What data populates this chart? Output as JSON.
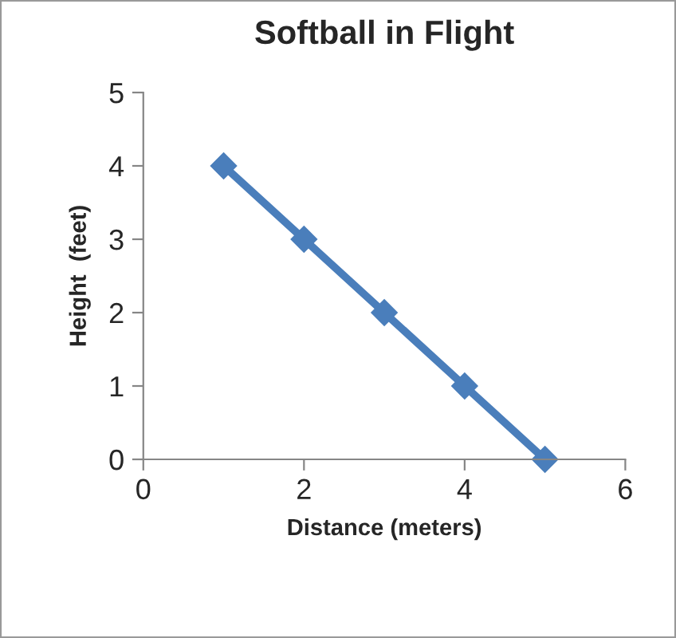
{
  "chart_data": {
    "type": "line",
    "title": "Softball in Flight",
    "xlabel": "Distance (meters)",
    "ylabel": "Height  (feet)",
    "x": [
      1,
      2,
      3,
      4,
      5
    ],
    "series": [
      {
        "color": "#4a7ebb",
        "values": [
          4,
          3,
          2,
          1,
          0
        ]
      }
    ],
    "xlim": [
      0,
      6
    ],
    "xticks": [
      0,
      2,
      4,
      6
    ],
    "ylim": [
      0,
      5
    ],
    "yticks": [
      0,
      1,
      2,
      3,
      4,
      5
    ],
    "grid": false,
    "marker": "diamond",
    "line_style": "solid"
  }
}
